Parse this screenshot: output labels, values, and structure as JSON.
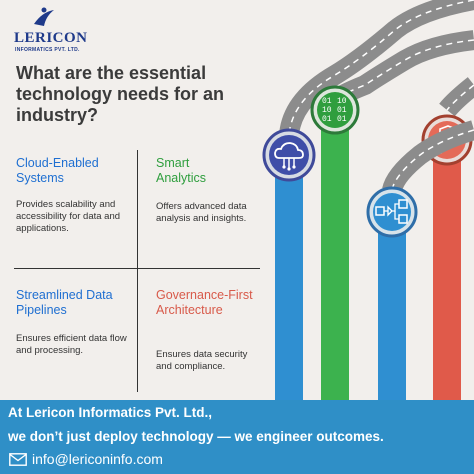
{
  "logo": {
    "brand": "LERICON",
    "subtitle": "INFORMATICS PVT. LTD."
  },
  "heading": "What are the essential technology needs for an industry?",
  "quadrants": [
    {
      "title": "Cloud-Enabled Systems",
      "description": "Provides scalability and accessibility for data and applications.",
      "color": "#1f6fd1",
      "icon": "cloud-icon"
    },
    {
      "title": "Smart Analytics",
      "description": "Offers advanced data analysis and insights.",
      "color": "#2f9e3e",
      "icon": "binary-code-icon"
    },
    {
      "title": "Streamlined Data Pipelines",
      "description": "Ensures efficient data flow and processing.",
      "color": "#1f6fd1",
      "icon": "flowchart-icon"
    },
    {
      "title": "Governance-First Architecture",
      "description": "Ensures data security and compliance.",
      "color": "#d85a4a",
      "icon": "shield-user-icon"
    }
  ],
  "binary_text": [
    "01",
    "10",
    "01"
  ],
  "binary_text_right": [
    "10",
    "01",
    "01"
  ],
  "footer": {
    "line1": "At Lericon Informatics Pvt. Ltd.,",
    "line2": "we don’t just deploy technology — we engineer outcomes.",
    "email": "info@lericoninfo.com",
    "background": "#2f8fc7"
  }
}
